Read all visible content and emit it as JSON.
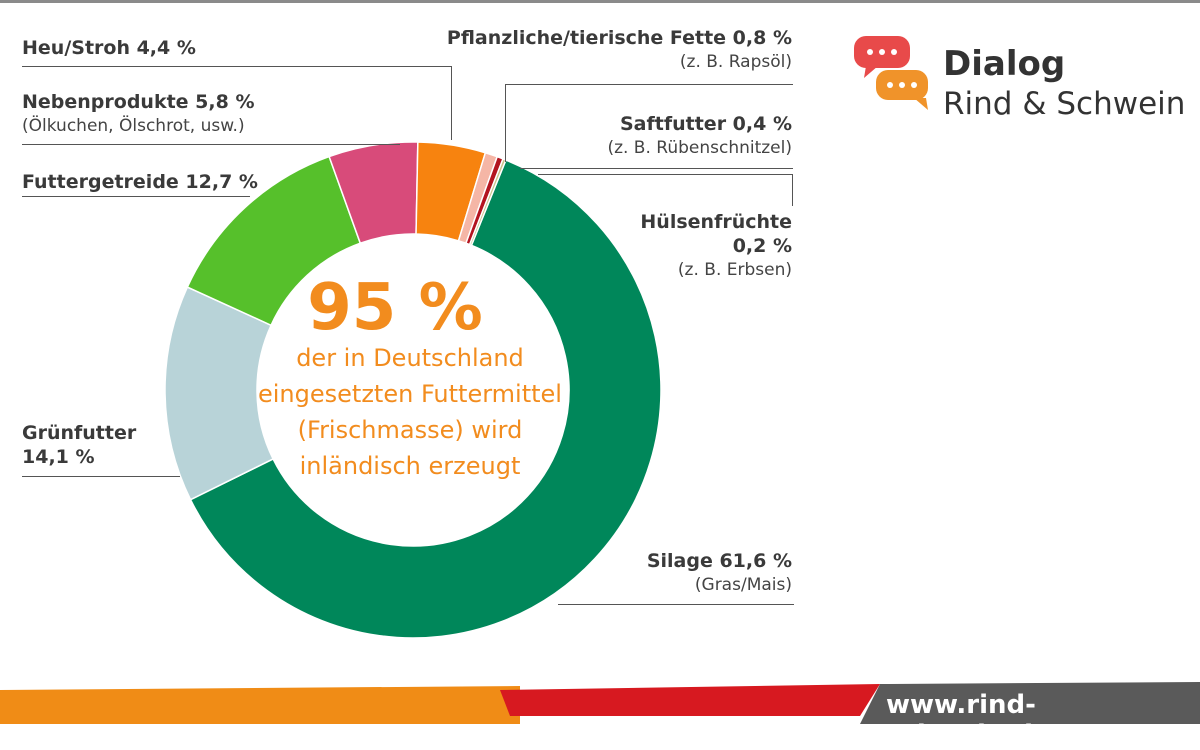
{
  "chart_data": {
    "type": "pie",
    "variant": "donut",
    "slices": [
      {
        "key": "silage",
        "label": "Silage 61,6 %",
        "sub": "(Gras/Mais)",
        "value": 61.6,
        "color": "#00875a"
      },
      {
        "key": "gruen",
        "label": "Grünfutter 14,1 %",
        "sub": "",
        "value": 14.1,
        "color": "#b8d3d8"
      },
      {
        "key": "getreide",
        "label": "Futtergetreide 12,7 %",
        "sub": "",
        "value": 12.7,
        "color": "#56c02b"
      },
      {
        "key": "neben",
        "label": "Nebenprodukte 5,8 %",
        "sub": "(Ölkuchen, Ölschrot, usw.)",
        "value": 5.8,
        "color": "#d84b7a"
      },
      {
        "key": "heu",
        "label": "Heu/Stroh 4,4 %",
        "sub": "",
        "value": 4.4,
        "color": "#f7830f"
      },
      {
        "key": "fette",
        "label": "Pflanzliche/tierische Fette 0,8 %",
        "sub": "(z. B. Rapsöl)",
        "value": 0.8,
        "color": "#f5b6a6"
      },
      {
        "key": "saft",
        "label": "Saftfutter 0,4 %",
        "sub": "(z. B. Rübenschnitzel)",
        "value": 0.4,
        "color": "#b3141f"
      },
      {
        "key": "huelsen",
        "label": "Hülsenfrüchte",
        "label2": "0,2 %",
        "sub": "(z. B. Erbsen)",
        "value": 0.2,
        "color": "#c9c48a"
      }
    ],
    "center": {
      "value": "95 %",
      "lines": [
        "der in Deutschland",
        "eingesetzten Futtermittel",
        "(Frischmasse) wird",
        "inländisch erzeugt"
      ]
    }
  },
  "logo": {
    "title": "Dialog",
    "subtitle": "Rind & Schwein",
    "icon": "speech-bubbles-icon",
    "colors": {
      "bubble_red": "#e84a4a",
      "bubble_orange": "#f0932a"
    }
  },
  "footer": {
    "url": "www.rind-schwein.de",
    "colors": {
      "orange": "#f08c16",
      "red": "#d71920",
      "dark": "#555555"
    }
  }
}
